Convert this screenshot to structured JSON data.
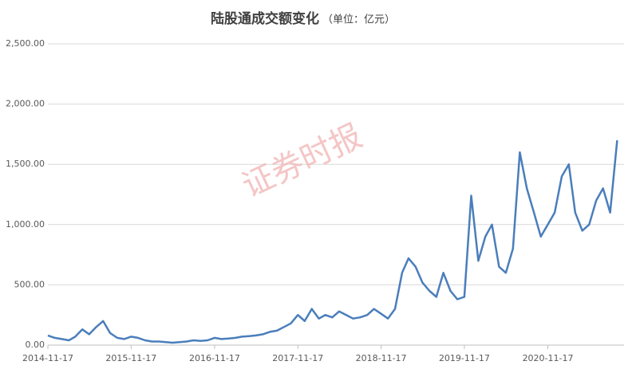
{
  "chart_data": {
    "type": "line",
    "title": "陆股通成交额变化",
    "subtitle": "（单位：亿元）",
    "watermark": "证券时报",
    "grid": true,
    "x": [
      "2014-11-17",
      "2014-12-17",
      "2015-01-17",
      "2015-02-17",
      "2015-03-17",
      "2015-04-17",
      "2015-05-17",
      "2015-06-17",
      "2015-07-17",
      "2015-08-17",
      "2015-09-17",
      "2015-10-17",
      "2015-11-17",
      "2015-12-17",
      "2016-01-17",
      "2016-02-17",
      "2016-03-17",
      "2016-04-17",
      "2016-05-17",
      "2016-06-17",
      "2016-07-17",
      "2016-08-17",
      "2016-09-17",
      "2016-10-17",
      "2016-11-17",
      "2016-12-17",
      "2017-01-17",
      "2017-02-17",
      "2017-03-17",
      "2017-04-17",
      "2017-05-17",
      "2017-06-17",
      "2017-07-17",
      "2017-08-17",
      "2017-09-17",
      "2017-10-17",
      "2017-11-17",
      "2017-12-17",
      "2018-01-17",
      "2018-02-17",
      "2018-03-17",
      "2018-04-17",
      "2018-05-17",
      "2018-06-17",
      "2018-07-17",
      "2018-08-17",
      "2018-09-17",
      "2018-10-17",
      "2018-11-17",
      "2018-12-17",
      "2019-01-17",
      "2019-02-17",
      "2019-03-17",
      "2019-04-17",
      "2019-05-17",
      "2019-06-17",
      "2019-07-17",
      "2019-08-17",
      "2019-09-17",
      "2019-10-17",
      "2019-11-17",
      "2019-12-17",
      "2020-01-17",
      "2020-02-17",
      "2020-03-17",
      "2020-04-17",
      "2020-05-17",
      "2020-06-17",
      "2020-07-17",
      "2020-08-17",
      "2020-09-17",
      "2020-10-17",
      "2020-11-17",
      "2020-12-17",
      "2021-01-17",
      "2021-02-17",
      "2021-03-17",
      "2021-04-17",
      "2021-05-17",
      "2021-06-17",
      "2021-07-17",
      "2021-08-17",
      "2021-09-17"
    ],
    "series": [
      {
        "name": "陆股通成交额",
        "color": "#4a7ebb",
        "values": [
          80,
          60,
          50,
          40,
          70,
          130,
          90,
          150,
          200,
          100,
          60,
          50,
          70,
          60,
          40,
          30,
          30,
          25,
          20,
          25,
          30,
          40,
          35,
          40,
          60,
          50,
          55,
          60,
          70,
          75,
          80,
          90,
          110,
          120,
          150,
          180,
          250,
          200,
          300,
          220,
          250,
          230,
          280,
          250,
          220,
          230,
          250,
          300,
          260,
          220,
          300,
          600,
          720,
          650,
          520,
          450,
          400,
          600,
          450,
          380,
          400,
          1240,
          700,
          900,
          1000,
          650,
          600,
          800,
          1600,
          1300,
          1100,
          900,
          1000,
          1100,
          1400,
          1500,
          1100,
          950,
          1000,
          1200,
          1300,
          1100,
          1700
        ]
      }
    ],
    "xlim": [
      "2014-11-17",
      "2021-10-17"
    ],
    "xticks": [
      "2014-11-17",
      "2015-11-17",
      "2016-11-17",
      "2017-11-17",
      "2018-11-17",
      "2019-11-17",
      "2020-11-17"
    ],
    "ylim": [
      0,
      2500
    ],
    "yticks": [
      {
        "value": 0,
        "label": "0.00"
      },
      {
        "value": 500,
        "label": "500.00"
      },
      {
        "value": 1000,
        "label": "1,000.00"
      },
      {
        "value": 1500,
        "label": "1,500.00"
      },
      {
        "value": 2000,
        "label": "2,000.00"
      },
      {
        "value": 2500,
        "label": "2,500.00"
      }
    ]
  }
}
